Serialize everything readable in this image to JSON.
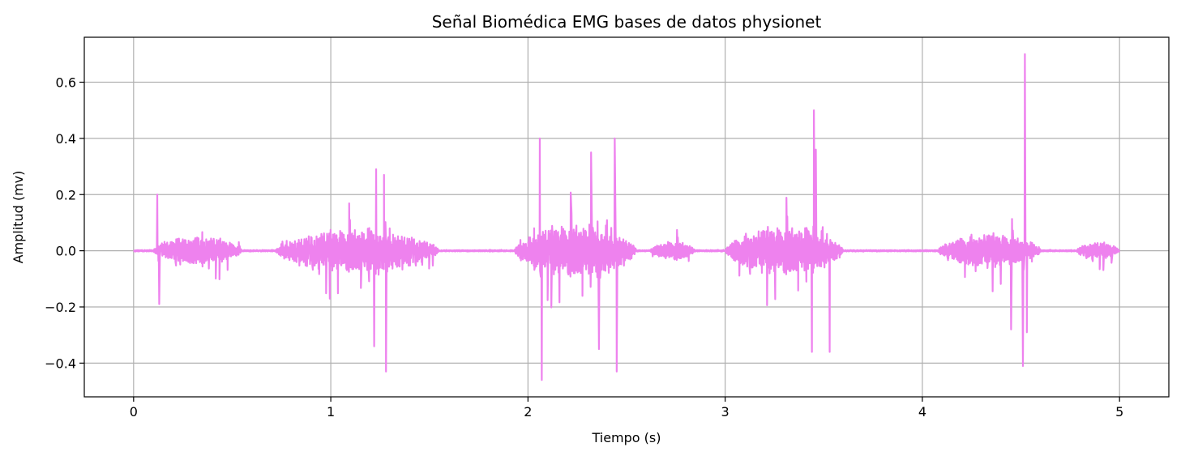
{
  "chart_data": {
    "type": "line",
    "title": "Señal Biomédica EMG bases de datos physionet",
    "xlabel": "Tiempo (s)",
    "ylabel": "Amplitud (mv)",
    "xlim": [
      -0.25,
      5.25
    ],
    "ylim": [
      -0.52,
      0.76
    ],
    "x_ticks": [
      0,
      1,
      2,
      3,
      4,
      5
    ],
    "x_tick_labels": [
      "0",
      "1",
      "2",
      "3",
      "4",
      "5"
    ],
    "y_ticks": [
      -0.4,
      -0.2,
      0.0,
      0.2,
      0.4,
      0.6
    ],
    "y_tick_labels": [
      "−0.4",
      "−0.2",
      "0.0",
      "0.2",
      "0.4",
      "0.6"
    ],
    "grid": true,
    "legend": "none",
    "line_color": "#ee82ee",
    "sample_rate_hz": 4000,
    "duration_s": 5.0,
    "series": [
      {
        "name": "",
        "bursts": [
          {
            "t_start": 0.1,
            "t_end": 0.55,
            "amplitude": 0.12
          },
          {
            "t_start": 0.72,
            "t_end": 1.55,
            "amplitude": 0.18
          },
          {
            "t_start": 1.93,
            "t_end": 2.55,
            "amplitude": 0.22
          },
          {
            "t_start": 2.62,
            "t_end": 2.85,
            "amplitude": 0.08
          },
          {
            "t_start": 3.0,
            "t_end": 3.6,
            "amplitude": 0.2
          },
          {
            "t_start": 4.08,
            "t_end": 4.6,
            "amplitude": 0.14
          },
          {
            "t_start": 4.78,
            "t_end": 5.0,
            "amplitude": 0.07
          }
        ],
        "spikes": [
          {
            "x": 0.12,
            "y": 0.2
          },
          {
            "x": 0.13,
            "y": -0.19
          },
          {
            "x": 1.23,
            "y": 0.29
          },
          {
            "x": 1.22,
            "y": -0.34
          },
          {
            "x": 1.28,
            "y": -0.43
          },
          {
            "x": 1.27,
            "y": 0.27
          },
          {
            "x": 2.06,
            "y": 0.4
          },
          {
            "x": 2.07,
            "y": -0.46
          },
          {
            "x": 2.32,
            "y": 0.35
          },
          {
            "x": 2.44,
            "y": 0.4
          },
          {
            "x": 2.45,
            "y": -0.43
          },
          {
            "x": 2.36,
            "y": -0.35
          },
          {
            "x": 3.45,
            "y": 0.5
          },
          {
            "x": 3.44,
            "y": -0.36
          },
          {
            "x": 3.53,
            "y": -0.36
          },
          {
            "x": 3.46,
            "y": 0.36
          },
          {
            "x": 4.52,
            "y": 0.7
          },
          {
            "x": 4.51,
            "y": -0.41
          },
          {
            "x": 4.53,
            "y": -0.29
          },
          {
            "x": 4.45,
            "y": -0.28
          }
        ]
      }
    ]
  }
}
